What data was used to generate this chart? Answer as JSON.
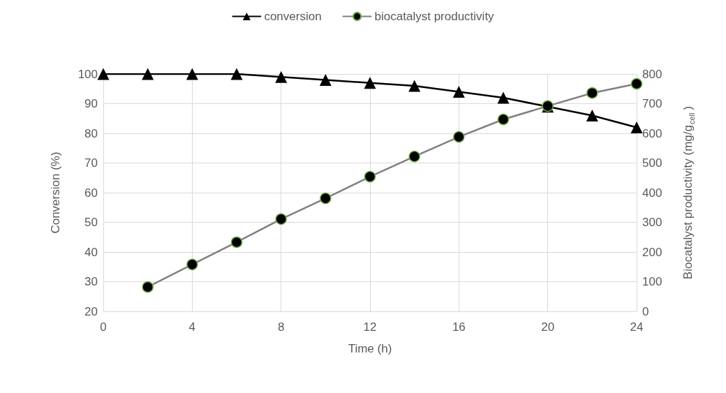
{
  "chart_data": {
    "type": "line",
    "xlabel": "Time (h)",
    "ylabel": "Conversion (%)",
    "y2label": "Biocatalyst productivity (mg/g$_{cell}$)",
    "series": [
      {
        "name": "conversion",
        "color": "#000000",
        "marker": "triangle",
        "x": [
          0,
          2,
          4,
          6,
          8,
          10,
          12,
          14,
          16,
          18,
          20,
          22,
          24
        ],
        "values": [
          100,
          100,
          100,
          100,
          99,
          98,
          97,
          96,
          94,
          92,
          89,
          86,
          82
        ]
      },
      {
        "name": "biocatalyst productivity",
        "color": "#7f7f7f",
        "marker": "circle",
        "axis": "y2",
        "x": [
          2,
          4,
          6,
          8,
          10,
          12,
          14,
          16,
          18,
          20,
          22,
          24
        ],
        "values": [
          82,
          158,
          233,
          311,
          381,
          454,
          522,
          588,
          647,
          692,
          736,
          767
        ]
      }
    ],
    "xlim": [
      0,
      24
    ],
    "xticks": [
      0,
      4,
      8,
      12,
      16,
      20,
      24
    ],
    "ylim": [
      20,
      100
    ],
    "yticks": [
      20,
      30,
      40,
      50,
      60,
      70,
      80,
      90,
      100
    ],
    "y2lim": [
      0,
      800
    ],
    "y2ticks": [
      0,
      100,
      200,
      300,
      400,
      500,
      600,
      700,
      800
    ],
    "grid": true,
    "legend": "top",
    "line_style": "solid"
  }
}
